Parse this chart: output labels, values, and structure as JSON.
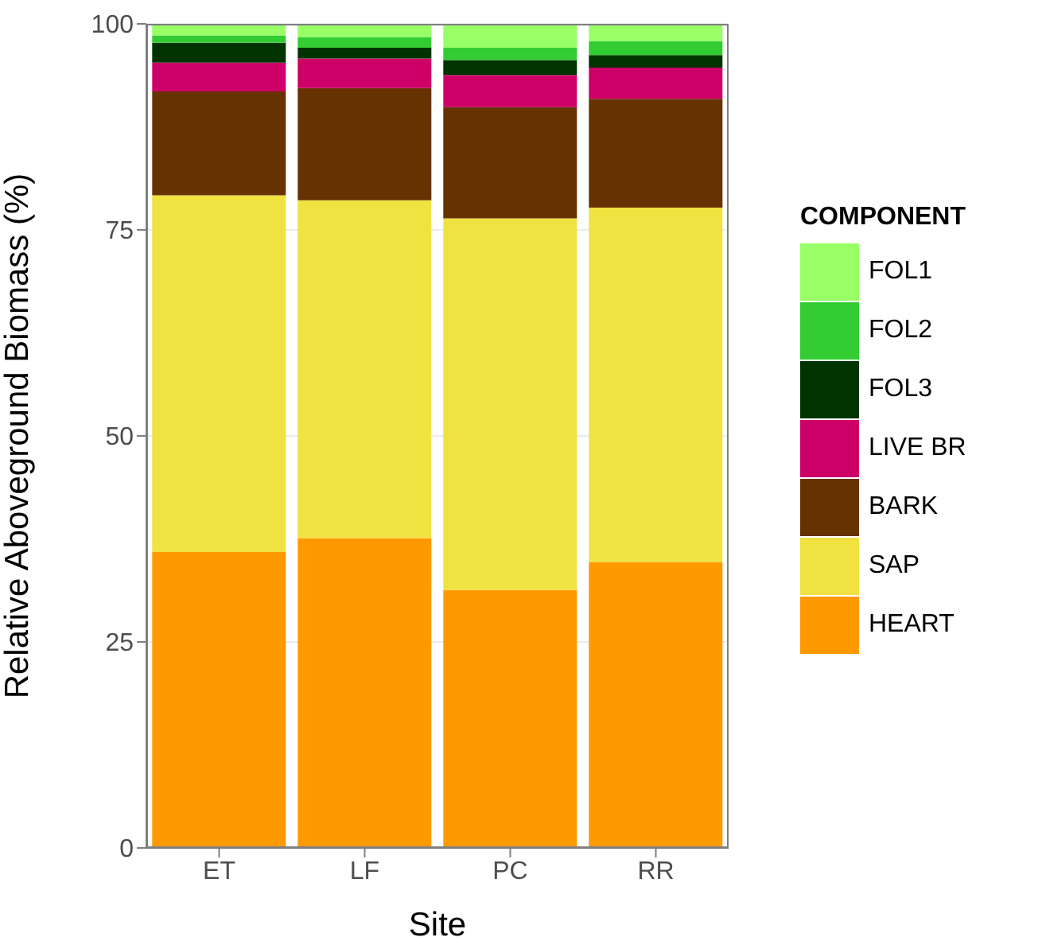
{
  "chart_data": {
    "type": "bar",
    "stacked": true,
    "xlabel": "Site",
    "ylabel": "Relative Aboveground Biomass (%)",
    "legend_title": "COMPONENT",
    "categories": [
      "ET",
      "LF",
      "PC",
      "RR"
    ],
    "series": [
      {
        "name": "HEART",
        "color": "#ff9900",
        "values": [
          35.9,
          37.6,
          31.3,
          34.7
        ]
      },
      {
        "name": "SAP",
        "color": "#efe241",
        "values": [
          43.3,
          41.0,
          45.1,
          43.0
        ]
      },
      {
        "name": "BARK",
        "color": "#663300",
        "values": [
          12.6,
          13.6,
          13.5,
          13.2
        ]
      },
      {
        "name": "LIVE BR",
        "color": "#cc0066",
        "values": [
          3.5,
          3.6,
          3.9,
          3.8
        ]
      },
      {
        "name": "FOL3",
        "color": "#003300",
        "values": [
          2.4,
          1.3,
          1.8,
          1.5
        ]
      },
      {
        "name": "FOL2",
        "color": "#33cc33",
        "values": [
          0.9,
          1.3,
          1.5,
          1.7
        ]
      },
      {
        "name": "FOL1",
        "color": "#99ff66",
        "values": [
          1.4,
          1.6,
          2.9,
          2.1
        ]
      }
    ],
    "ylim": [
      0,
      100
    ],
    "yticks": [
      0,
      25,
      50,
      75,
      100
    ],
    "grid": "y",
    "legend": "right"
  }
}
